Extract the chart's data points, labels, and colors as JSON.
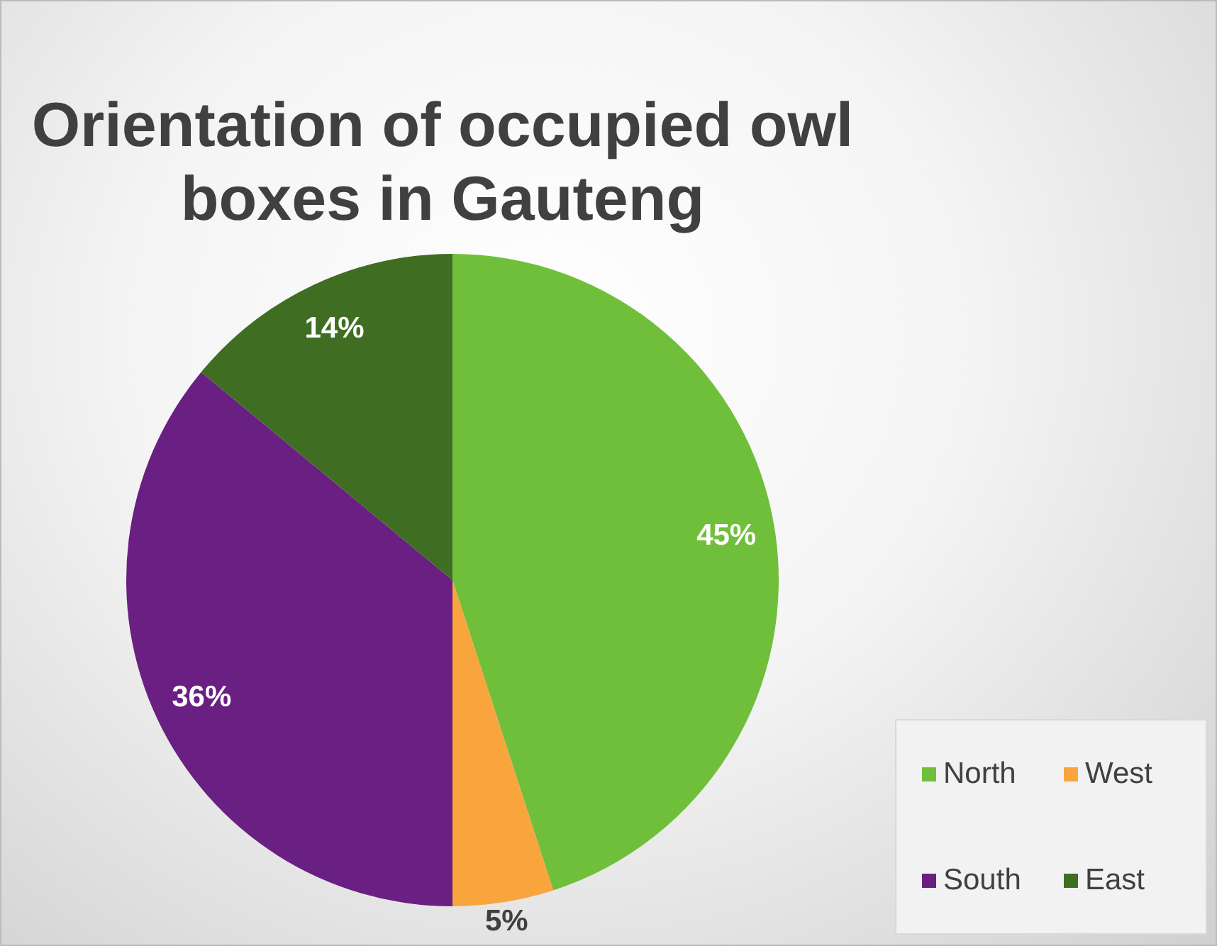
{
  "chart_data": {
    "type": "pie",
    "title": "Orientation of occupied owl boxes in Gauteng",
    "categories": [
      "North",
      "West",
      "South",
      "East"
    ],
    "values": [
      45,
      5,
      36,
      14
    ],
    "colors": [
      "#70bf3a",
      "#f9a53e",
      "#6a1f82",
      "#3f6e23"
    ],
    "value_labels": [
      "45%",
      "5%",
      "36%",
      "14%"
    ],
    "legend": "bottom right"
  }
}
